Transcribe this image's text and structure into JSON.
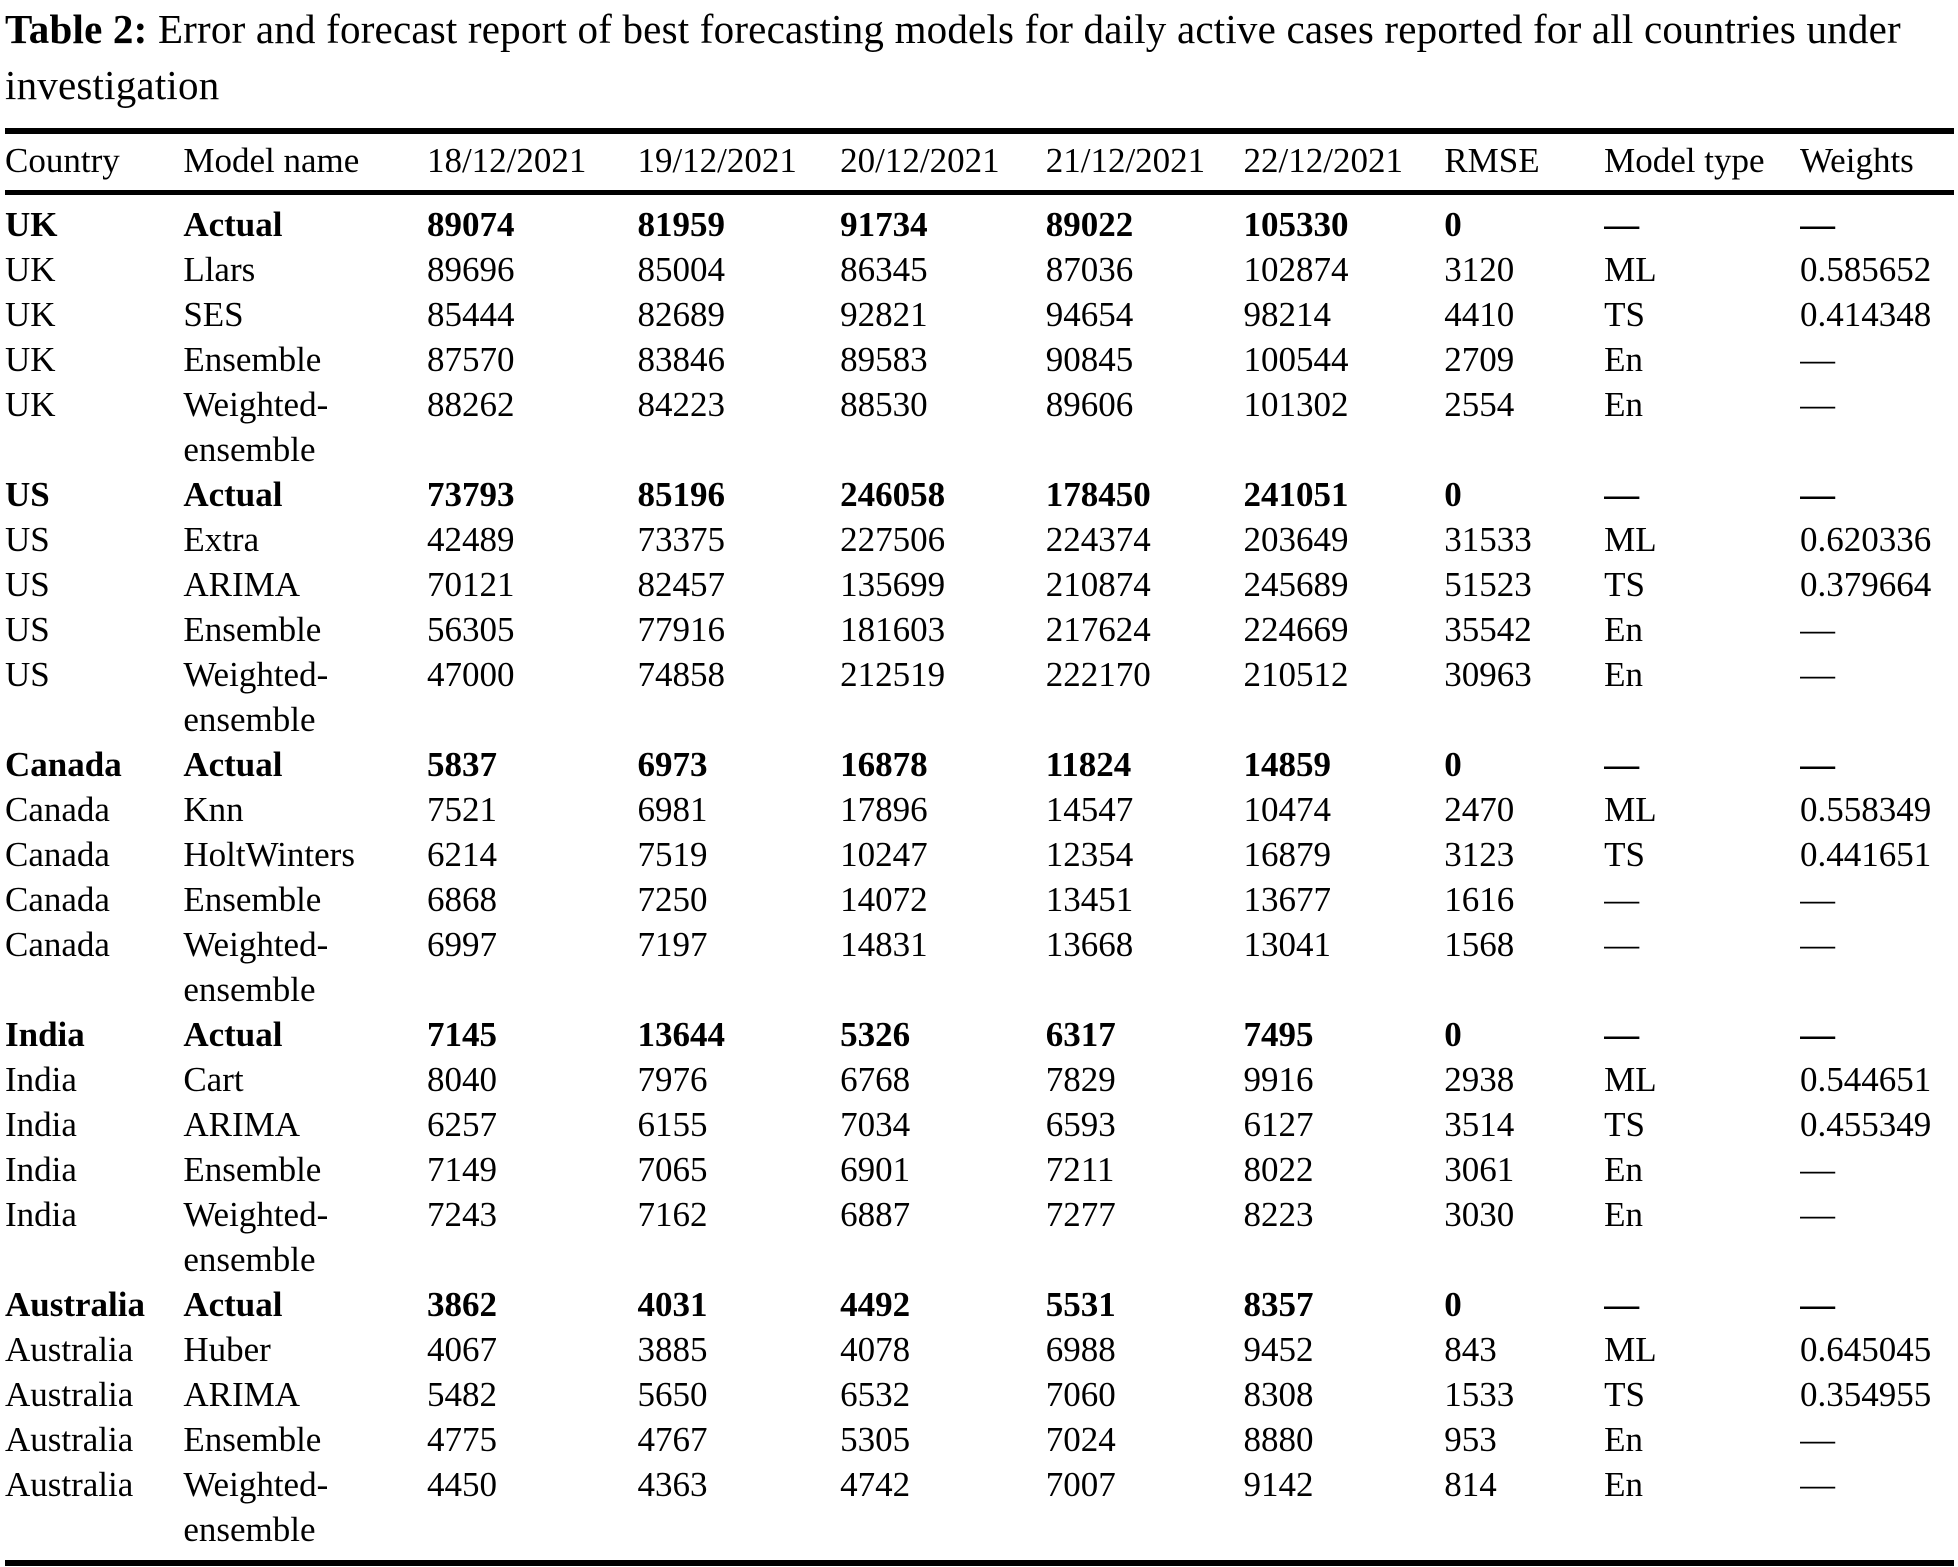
{
  "title": {
    "label": "Table 2:",
    "text": "Error and forecast report of best forecasting models for daily active cases reported for all countries under investigation"
  },
  "table": {
    "columns": [
      "Country",
      "Model name",
      "18/12/2021",
      "19/12/2021",
      "20/12/2021",
      "21/12/2021",
      "22/12/2021",
      "RMSE",
      "Model type",
      "Weights"
    ],
    "rows": [
      {
        "bold": true,
        "cells": [
          "UK",
          "Actual",
          "89074",
          "81959",
          "91734",
          "89022",
          "105330",
          "0",
          "—",
          "—"
        ]
      },
      {
        "bold": false,
        "cells": [
          "UK",
          "Llars",
          "89696",
          "85004",
          "86345",
          "87036",
          "102874",
          "3120",
          "ML",
          "0.585652"
        ]
      },
      {
        "bold": false,
        "cells": [
          "UK",
          "SES",
          "85444",
          "82689",
          "92821",
          "94654",
          "98214",
          "4410",
          "TS",
          "0.414348"
        ]
      },
      {
        "bold": false,
        "cells": [
          "UK",
          "Ensemble",
          "87570",
          "83846",
          "89583",
          "90845",
          "100544",
          "2709",
          "En",
          "—"
        ]
      },
      {
        "bold": false,
        "cells": [
          "UK",
          "Weighted-\nensemble",
          "88262",
          "84223",
          "88530",
          "89606",
          "101302",
          "2554",
          "En",
          "—"
        ]
      },
      {
        "bold": true,
        "cells": [
          "US",
          "Actual",
          "73793",
          "85196",
          "246058",
          "178450",
          "241051",
          "0",
          "—",
          "—"
        ]
      },
      {
        "bold": false,
        "cells": [
          "US",
          "Extra",
          "42489",
          "73375",
          "227506",
          "224374",
          "203649",
          "31533",
          "ML",
          "0.620336"
        ]
      },
      {
        "bold": false,
        "cells": [
          "US",
          "ARIMA",
          "70121",
          "82457",
          "135699",
          "210874",
          "245689",
          "51523",
          "TS",
          "0.379664"
        ]
      },
      {
        "bold": false,
        "cells": [
          "US",
          "Ensemble",
          "56305",
          "77916",
          "181603",
          "217624",
          "224669",
          "35542",
          "En",
          "—"
        ]
      },
      {
        "bold": false,
        "cells": [
          "US",
          "Weighted-\nensemble",
          "47000",
          "74858",
          "212519",
          "222170",
          "210512",
          "30963",
          "En",
          "—"
        ]
      },
      {
        "bold": true,
        "cells": [
          "Canada",
          "Actual",
          "5837",
          "6973",
          "16878",
          "11824",
          "14859",
          "0",
          "—",
          "—"
        ]
      },
      {
        "bold": false,
        "cells": [
          "Canada",
          "Knn",
          "7521",
          "6981",
          "17896",
          "14547",
          "10474",
          "2470",
          "ML",
          "0.558349"
        ]
      },
      {
        "bold": false,
        "cells": [
          "Canada",
          "HoltWinters",
          "6214",
          "7519",
          "10247",
          "12354",
          "16879",
          "3123",
          "TS",
          "0.441651"
        ]
      },
      {
        "bold": false,
        "cells": [
          "Canada",
          "Ensemble",
          "6868",
          "7250",
          "14072",
          "13451",
          "13677",
          "1616",
          "—",
          "—"
        ]
      },
      {
        "bold": false,
        "cells": [
          "Canada",
          "Weighted-\nensemble",
          "6997",
          "7197",
          "14831",
          "13668",
          "13041",
          "1568",
          "—",
          "—"
        ]
      },
      {
        "bold": true,
        "cells": [
          "India",
          "Actual",
          "7145",
          "13644",
          "5326",
          "6317",
          "7495",
          "0",
          "—",
          "—"
        ]
      },
      {
        "bold": false,
        "cells": [
          "India",
          "Cart",
          "8040",
          "7976",
          "6768",
          "7829",
          "9916",
          "2938",
          "ML",
          "0.544651"
        ]
      },
      {
        "bold": false,
        "cells": [
          "India",
          "ARIMA",
          "6257",
          "6155",
          "7034",
          "6593",
          "6127",
          "3514",
          "TS",
          "0.455349"
        ]
      },
      {
        "bold": false,
        "cells": [
          "India",
          "Ensemble",
          "7149",
          "7065",
          "6901",
          "7211",
          "8022",
          "3061",
          "En",
          "—"
        ]
      },
      {
        "bold": false,
        "cells": [
          "India",
          "Weighted-\nensemble",
          "7243",
          "7162",
          "6887",
          "7277",
          "8223",
          "3030",
          "En",
          "—"
        ]
      },
      {
        "bold": true,
        "cells": [
          "Australia",
          "Actual",
          "3862",
          "4031",
          "4492",
          "5531",
          "8357",
          "0",
          "—",
          "—"
        ]
      },
      {
        "bold": false,
        "cells": [
          "Australia",
          "Huber",
          "4067",
          "3885",
          "4078",
          "6988",
          "9452",
          "843",
          "ML",
          "0.645045"
        ]
      },
      {
        "bold": false,
        "cells": [
          "Australia",
          "ARIMA",
          "5482",
          "5650",
          "6532",
          "7060",
          "8308",
          "1533",
          "TS",
          "0.354955"
        ]
      },
      {
        "bold": false,
        "cells": [
          "Australia",
          "Ensemble",
          "4775",
          "4767",
          "5305",
          "7024",
          "8880",
          "953",
          "En",
          "—"
        ]
      },
      {
        "bold": false,
        "cells": [
          "Australia",
          "Weighted-\nensemble",
          "4450",
          "4363",
          "4742",
          "7007",
          "9142",
          "814",
          "En",
          "—"
        ]
      }
    ]
  }
}
